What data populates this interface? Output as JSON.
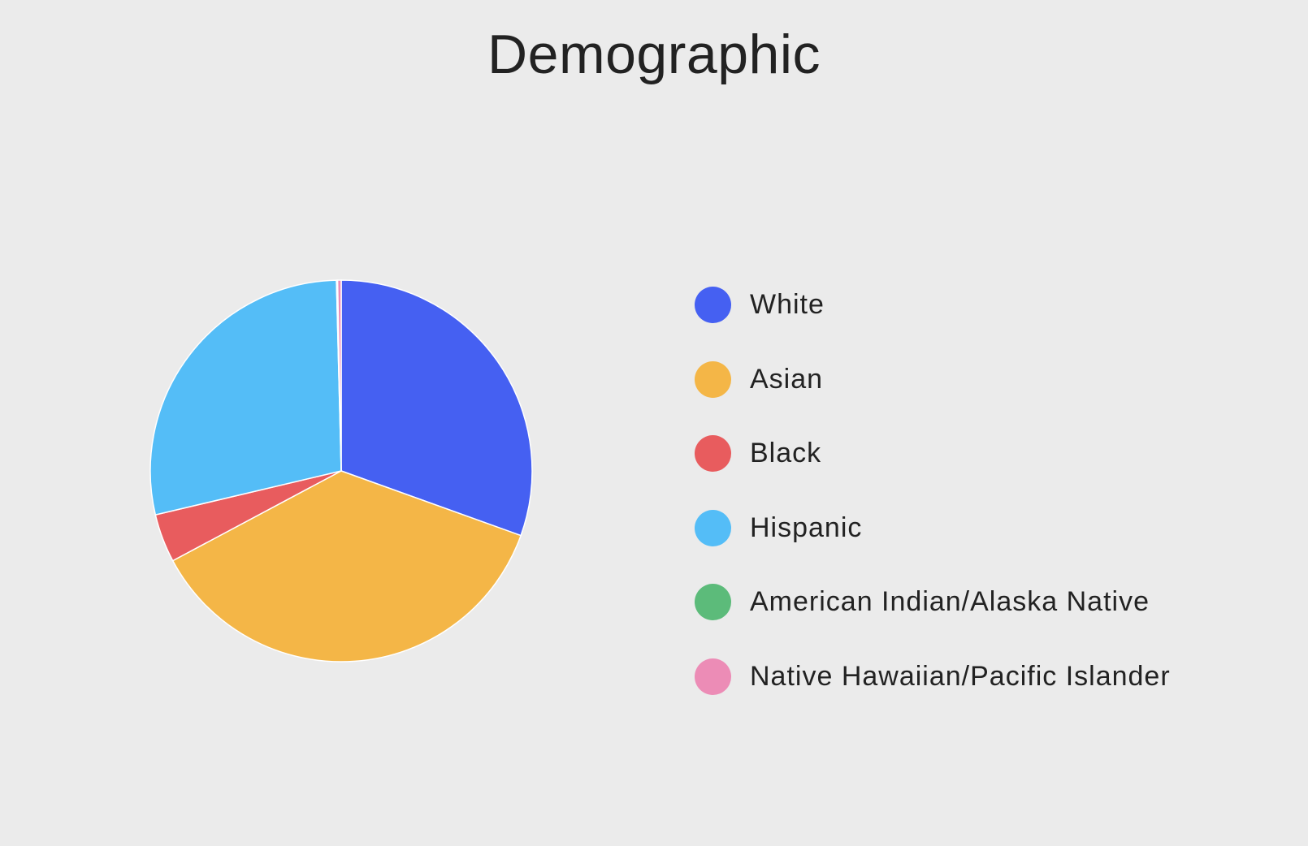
{
  "chart_data": {
    "type": "pie",
    "title": "Demographic",
    "legend_position": "right",
    "categories": [
      "White",
      "Asian",
      "Black",
      "Hispanic",
      "American Indian/Alaska Native",
      "Native Hawaiian/Pacific Islander"
    ],
    "values": [
      30.5,
      36.7,
      4.1,
      28.3,
      0.1,
      0.3
    ],
    "colors": [
      "#4560f2",
      "#f4b647",
      "#e85c5e",
      "#54bdf7",
      "#5cbb7a",
      "#ec8cb6"
    ]
  }
}
